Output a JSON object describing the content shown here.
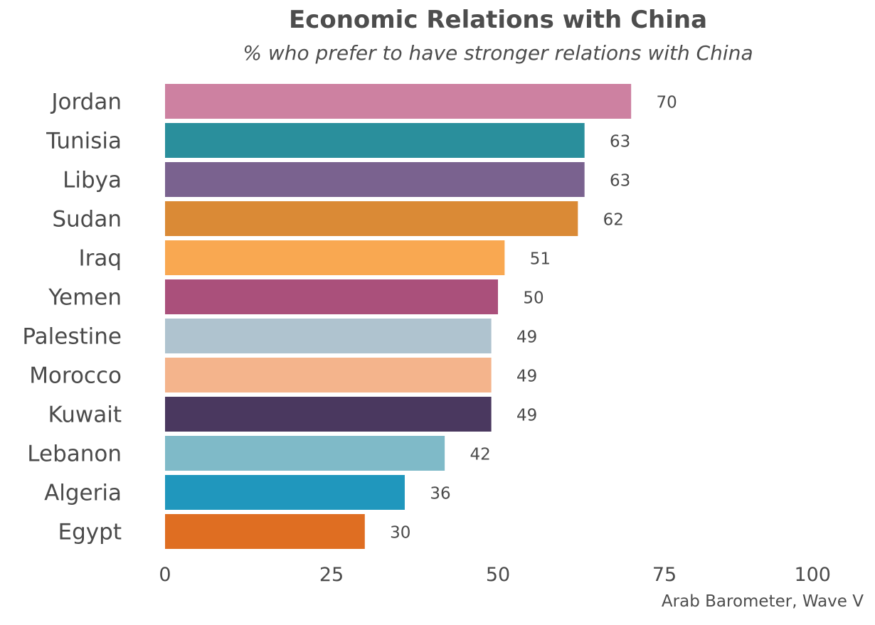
{
  "chart_data": {
    "type": "bar",
    "orientation": "horizontal",
    "title": "Economic Relations with China",
    "subtitle": "% who prefer to have stronger relations with China",
    "caption": "Arab Barometer, Wave V",
    "categories": [
      "Jordan",
      "Tunisia",
      "Libya",
      "Sudan",
      "Iraq",
      "Yemen",
      "Palestine",
      "Morocco",
      "Kuwait",
      "Lebanon",
      "Algeria",
      "Egypt"
    ],
    "values": [
      70,
      63,
      63,
      62,
      51,
      50,
      49,
      49,
      49,
      42,
      36,
      30
    ],
    "colors": [
      "#cd81a1",
      "#2a8f9c",
      "#7a628f",
      "#da8a36",
      "#f9a851",
      "#aa507b",
      "#afc3cf",
      "#f4b48c",
      "#4a385f",
      "#7fbac8",
      "#2097bd",
      "#df6e22"
    ],
    "xlim": [
      0,
      100
    ],
    "xticks": [
      "0",
      "25",
      "50",
      "75",
      "100"
    ],
    "xtick_values": [
      0,
      25,
      50,
      75,
      100
    ],
    "grid": false,
    "legend": "none"
  }
}
